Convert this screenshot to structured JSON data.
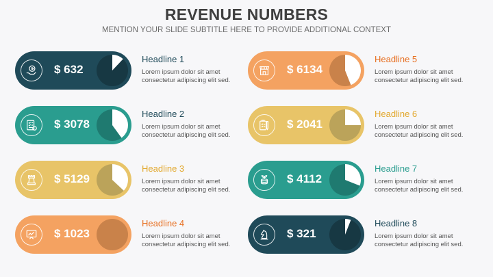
{
  "title": "REVENUE NUMBERS",
  "subtitle": "MENTION YOUR SLIDE SUBTITLE HERE TO PROVIDE ADDITIONAL CONTEXT",
  "items": [
    {
      "icon": "money-hand-icon",
      "amount": "$ 632",
      "progress": 0.12,
      "headline": "Headline 1",
      "desc": "Lorem ipsum dolor sit amet consectetur adipiscing elit sed.",
      "color": "#1f4a59",
      "dark": "#173843",
      "headline_color": "#1f4a59"
    },
    {
      "icon": "checklist-icon",
      "amount": "$ 3078",
      "progress": 0.4,
      "headline": "Headline 2",
      "desc": "Lorem ipsum dolor sit amet consectetur adipiscing elit sed.",
      "color": "#2a9d8f",
      "dark": "#1f7a70",
      "headline_color": "#1f4a59"
    },
    {
      "icon": "chess-rook-icon",
      "amount": "$ 5129",
      "progress": 0.37,
      "headline": "Headline 3",
      "desc": "Lorem ipsum dolor sit amet consectetur adipiscing elit sed.",
      "color": "#e8c468",
      "dark": "#bba35a",
      "headline_color": "#e2a82e"
    },
    {
      "icon": "presentation-chart-icon",
      "amount": "$ 1023",
      "progress": 0.0,
      "headline": "Headline 4",
      "desc": "Lorem ipsum dolor sit amet consectetur adipiscing elit sed.",
      "color": "#f4a261",
      "dark": "#c9824a",
      "headline_color": "#e76f21"
    },
    {
      "icon": "store-icon",
      "amount": "$ 6134",
      "progress": 0.44,
      "headline": "Headline 5",
      "desc": "Lorem ipsum dolor sit amet consectetur adipiscing elit sed.",
      "color": "#f4a261",
      "dark": "#c9824a",
      "headline_color": "#e76f21"
    },
    {
      "icon": "clipboard-pen-icon",
      "amount": "$ 2041",
      "progress": 0.25,
      "headline": "Headline 6",
      "desc": "Lorem ipsum dolor sit amet consectetur adipiscing elit sed.",
      "color": "#e8c468",
      "dark": "#bba35a",
      "headline_color": "#e2a82e"
    },
    {
      "icon": "coins-plant-icon",
      "amount": "$ 4112",
      "progress": 0.31,
      "headline": "Headline 7",
      "desc": "Lorem ipsum dolor sit amet consectetur adipiscing elit sed.",
      "color": "#2a9d8f",
      "dark": "#1f7a70",
      "headline_color": "#2a9d8f"
    },
    {
      "icon": "chess-knight-icon",
      "amount": "$ 321",
      "progress": 0.06,
      "headline": "Headline 8",
      "desc": "Lorem ipsum dolor sit amet consectetur adipiscing elit sed.",
      "color": "#1f4a59",
      "dark": "#173843",
      "headline_color": "#1f4a59"
    }
  ]
}
